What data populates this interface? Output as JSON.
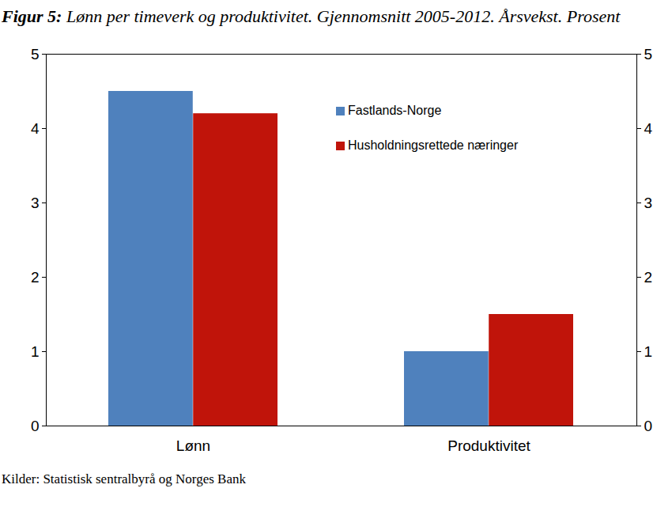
{
  "chart_data": {
    "type": "bar",
    "title": "Figur 5: Lønn per timeverk og produktivitet. Gjennomsnitt 2005-2012. Årsvekst. Prosent",
    "source": "Kilder: Statistisk sentralbyrå og Norges Bank",
    "categories": [
      "Lønn",
      "Produktivitet"
    ],
    "series": [
      {
        "name": "Fastlands-Norge",
        "color": "#4f81bd",
        "values": [
          4.5,
          1.0
        ]
      },
      {
        "name": "Husholdningsrettede næringer",
        "color": "#c0140a",
        "values": [
          4.2,
          1.5
        ]
      }
    ],
    "ylim": [
      0,
      5
    ],
    "yticks": [
      0,
      1,
      2,
      3,
      4,
      5
    ],
    "grid": false,
    "legend": "top"
  }
}
